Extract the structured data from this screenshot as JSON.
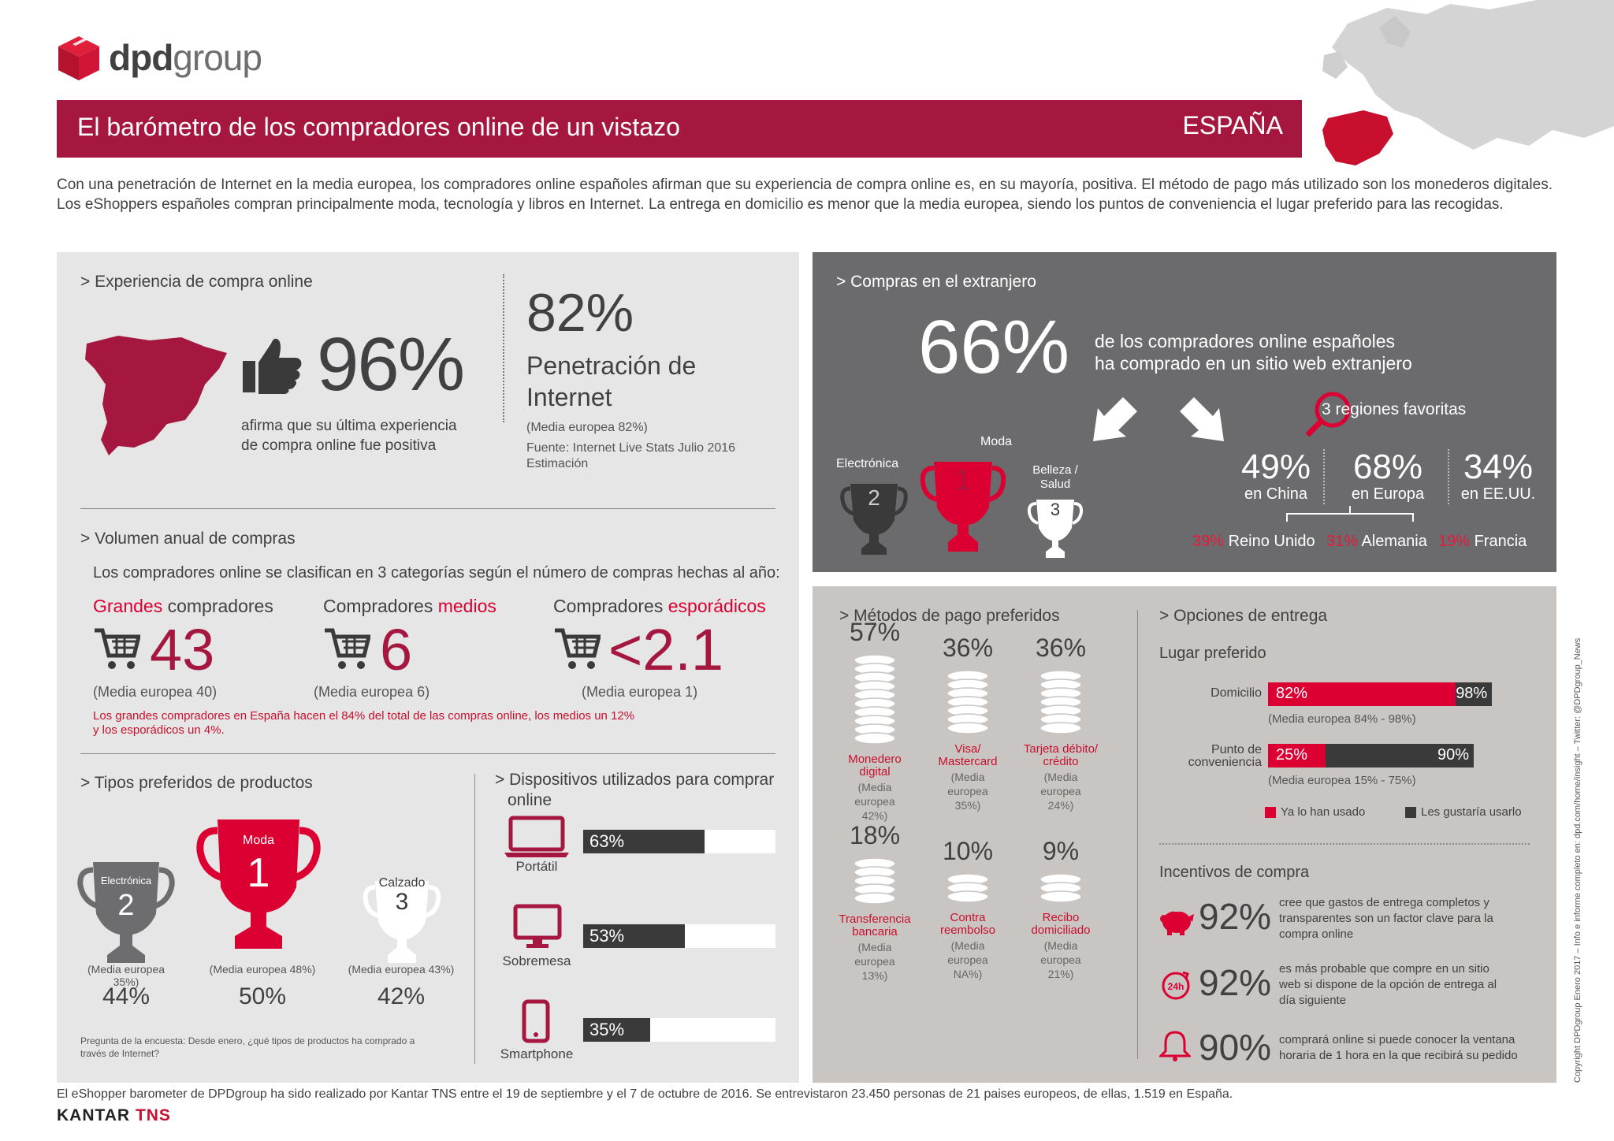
{
  "brand": {
    "name_bold": "dpd",
    "name_light": "group"
  },
  "header": {
    "title": "El barómetro de los compradores online de un vistazo",
    "country": "ESPAÑA"
  },
  "intro": "Con una penetración de Internet en la media europea, los compradores online españoles afirman que su experiencia de compra online es, en su mayoría, positiva. El método de pago más utilizado son los monederos digitales. Los eShoppers españoles compran principalmente moda, tecnología y libros en Internet. La entrega en domicilio es menor que la media europea, siendo los puntos de conveniencia el lugar preferido para las recogidas.",
  "experience": {
    "title": "> Experiencia de compra online",
    "value": "96%",
    "desc_1": "afirma que su última experiencia",
    "desc_2": "de compra online fue positiva",
    "penetration_value": "82%",
    "penetration_label_1": "Penetración de",
    "penetration_label_2": "Internet",
    "penetration_avg": "(Media europea 82%)",
    "source_1": "Fuente: Internet Live Stats Julio 2016",
    "source_2": "Estimación"
  },
  "volume": {
    "title": "> Volumen anual de compras",
    "subtitle": "Los compradores online se clasifican en 3 categorías según el número de compras hechas al año:",
    "cats": [
      {
        "label_a": "Grandes",
        "label_b": " compradores",
        "value": "43",
        "avg": "(Media europea 40)"
      },
      {
        "label_a": "Compradores ",
        "label_b": "medios",
        "value": "6",
        "avg": "(Media europea 6)"
      },
      {
        "label_a": "Compradores ",
        "label_b": "esporádicos",
        "value": "<2.1",
        "avg": "(Media europea 1)"
      }
    ],
    "note_1": "Los grandes compradores en España hacen el 84% del total de las compras online, los medios un 12%",
    "note_2": "y los esporádicos un 4%."
  },
  "products": {
    "title": "> Tipos preferidos de productos",
    "items": [
      {
        "name": "Electrónica",
        "rank": "2",
        "avg": "(Media europea 35%)",
        "value": "44%"
      },
      {
        "name": "Moda",
        "rank": "1",
        "avg": "(Media europea 48%)",
        "value": "50%"
      },
      {
        "name": "Calzado",
        "rank": "3",
        "avg": "(Media europea 43%)",
        "value": "42%"
      }
    ],
    "question_1": "Pregunta de la encuesta: Desde enero, ¿qué tipos de productos ha comprado a",
    "question_2": "través de Internet?"
  },
  "devices": {
    "title_1": "> Dispositivos utilizados para comprar",
    "title_2": "online",
    "items": [
      {
        "name": "Portátil",
        "value": "63%",
        "pct": 63
      },
      {
        "name": "Sobremesa",
        "value": "53%",
        "pct": 53
      },
      {
        "name": "Smartphone",
        "value": "35%",
        "pct": 35
      }
    ]
  },
  "abroad": {
    "title": "> Compras en el extranjero",
    "value": "66%",
    "desc_1": "de los compradores online españoles",
    "desc_2": "ha comprado en un sitio web extranjero",
    "trophies": [
      {
        "name": "Electrónica",
        "rank": "2"
      },
      {
        "name": "Moda",
        "rank": "1"
      },
      {
        "name_1": "Belleza /",
        "name_2": "Salud",
        "rank": "3"
      }
    ],
    "regions_title": "3 regiones favoritas",
    "regions": [
      {
        "value": "49%",
        "prefix": "en ",
        "place": "China"
      },
      {
        "value": "68%",
        "prefix": "en ",
        "place": "Europa"
      },
      {
        "value": "34%",
        "prefix": "en ",
        "place": "EE.UU."
      }
    ],
    "countries": [
      {
        "value": "39%",
        "name": "Reino Unido"
      },
      {
        "value": "31%",
        "name": "Alemania"
      },
      {
        "value": "19%",
        "name": "Francia"
      }
    ]
  },
  "payment": {
    "title": "> Métodos de pago preferidos",
    "items": [
      {
        "value": "57%",
        "label_1": "Monedero",
        "label_2": "digital",
        "avg_1": "(Media",
        "avg_2": "europea",
        "avg_3": "42%)"
      },
      {
        "value": "36%",
        "label_1": "Visa/",
        "label_2": "Mastercard",
        "avg_1": "(Media",
        "avg_2": "europea",
        "avg_3": "35%)"
      },
      {
        "value": "36%",
        "label_1": "Tarjeta débito/",
        "label_2": "crédito",
        "avg_1": "(Media",
        "avg_2": "europea",
        "avg_3": "24%)"
      },
      {
        "value": "18%",
        "label_1": "Transferencia",
        "label_2": "bancaria",
        "avg_1": "(Media",
        "avg_2": "europea",
        "avg_3": "13%)"
      },
      {
        "value": "10%",
        "label_1": "Contra",
        "label_2": "reembolso",
        "avg_1": "(Media",
        "avg_2": "europea",
        "avg_3": "NA%)"
      },
      {
        "value": "9%",
        "label_1": "Recibo",
        "label_2": "domiciliado",
        "avg_1": "(Media",
        "avg_2": "europea",
        "avg_3": "21%)"
      }
    ]
  },
  "delivery": {
    "title": "> Opciones de entrega",
    "subtitle": "Lugar preferido",
    "rows": [
      {
        "label_1": "Domicilio",
        "label_2": "",
        "used": "82%",
        "used_pct": 82,
        "want": "98%",
        "want_pct": 98,
        "avg": "(Media europea 84% - 98%)"
      },
      {
        "label_1": "Punto de",
        "label_2": "conveniencia",
        "used": "25%",
        "used_pct": 25,
        "want": "90%",
        "want_pct": 90,
        "avg": "(Media europea 15% - 75%)"
      }
    ],
    "legend_used": "Ya lo han usado",
    "legend_want": "Les gustaría usarlo",
    "colors": {
      "used": "#dc0032",
      "want": "#3a3a3a"
    }
  },
  "incentives": {
    "title": "Incentivos de compra",
    "items": [
      {
        "icon": "piggy-bank-icon",
        "value": "92%",
        "text_1": "cree que gastos de entrega completos y",
        "text_2": "transparentes son un factor clave para la",
        "text_3": "compra online"
      },
      {
        "icon": "24h-icon",
        "value": "92%",
        "text_1": "es más probable que compre en un sitio",
        "text_2": "web si dispone de la opción de entrega al",
        "text_3": "día siguiente"
      },
      {
        "icon": "bell-icon",
        "value": "90%",
        "text_1": "comprará online si puede conocer la ventana",
        "text_2": "horaria de 1 hora en la que recibirá su pedido",
        "text_3": ""
      }
    ]
  },
  "footer": {
    "text": "El eShopper barometer de DPDgroup ha sido realizado por Kantar TNS entre el 19 de septiembre y el 7 de octubre de 2016. Se entrevistaron 23.450 personas de 21 paises europeos, de ellas, 1.519 en España.",
    "kantar_a": "KANTAR",
    "kantar_b": " TNS",
    "side_copyright": "Copyright DPDgroup Enero 2017 – Info e informe completo en: dpd.com/home/insight – Twitter: @DPDgroup_News"
  },
  "colors": {
    "brand_red": "#a6173f",
    "accent_red": "#dc0032",
    "dark": "#3a3a3a"
  }
}
